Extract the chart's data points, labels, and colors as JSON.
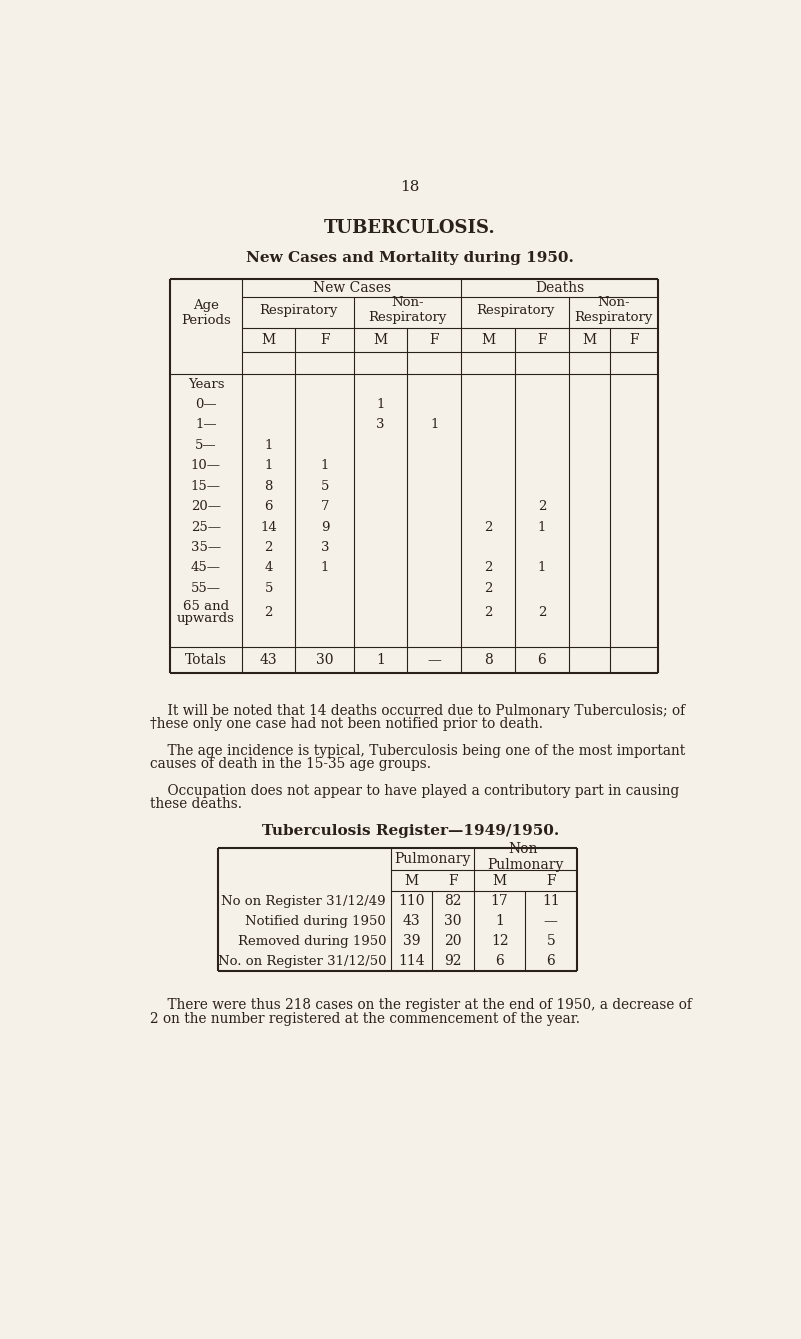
{
  "bg_color": "#f5f0e8",
  "text_color": "#2a2118",
  "page_number": "18",
  "main_title": "TUBERCULOSIS.",
  "table1_title": "New Cases and Mortality during 1950.",
  "table1_age_rows": [
    [
      "Years",
      "",
      "",
      "",
      "",
      "",
      "",
      "",
      ""
    ],
    [
      "0—",
      "",
      "",
      "1",
      "",
      "",
      "",
      "",
      ""
    ],
    [
      "1—",
      "",
      "",
      "3",
      "1",
      "",
      "",
      "",
      ""
    ],
    [
      "5—",
      "1",
      "",
      "",
      "",
      "",
      "",
      "",
      ""
    ],
    [
      "10—",
      "1",
      "1",
      "",
      "",
      "",
      "",
      "",
      ""
    ],
    [
      "15—",
      "8",
      "5",
      "",
      "",
      "",
      "",
      "",
      ""
    ],
    [
      "20—",
      "6",
      "7",
      "",
      "",
      "",
      "2",
      "",
      ""
    ],
    [
      "25—",
      "14",
      "9",
      "",
      "",
      "2",
      "1",
      "",
      ""
    ],
    [
      "35—",
      "2",
      "3",
      "",
      "",
      "",
      "",
      "",
      ""
    ],
    [
      "45—",
      "4",
      "1",
      "",
      "",
      "2",
      "1",
      "",
      ""
    ],
    [
      "55—",
      "5",
      "",
      "",
      "",
      "2",
      "",
      "",
      ""
    ],
    [
      "65 and",
      "2",
      "",
      "",
      "",
      "2",
      "2",
      "",
      ""
    ],
    [
      "upwards",
      "",
      "",
      "",
      "",
      "",
      "",
      "",
      ""
    ]
  ],
  "table1_totals": [
    "Totals",
    "43",
    "30",
    "1",
    "—",
    "8",
    "6",
    "",
    ""
  ],
  "para1_indent": "    It will be noted that 14 deaths occurred due to Pulmonary Tuberculosis; of",
  "para1_line2": "†hese only one case had not been notified prior to death.",
  "para2_indent": "    The age incidence is typical, Tuberculosis being one of the most important",
  "para2_line2": "causes of death in the 15-35 age groups.",
  "para3_indent": "    Occupation does not appear to have played a contributory part in causing",
  "para3_line2": "these deaths.",
  "table2_title": "Tuberculosis Register—1949/1950.",
  "table2_rows": [
    [
      "No on Register 31/12/49",
      "110",
      "82",
      "17",
      "11"
    ],
    [
      "Notified during 1950",
      "43",
      "30",
      "1",
      "—"
    ],
    [
      "Removed during 1950",
      "39",
      "20",
      "12",
      "5"
    ],
    [
      "No. on Register 31/12/50",
      "114",
      "92",
      "6",
      "6"
    ]
  ],
  "para4_line1": "    There were thus 218 cases on the register at the end of 1950, a decrease of",
  "para4_line2": "2 on the number registered at the commencement of the year."
}
